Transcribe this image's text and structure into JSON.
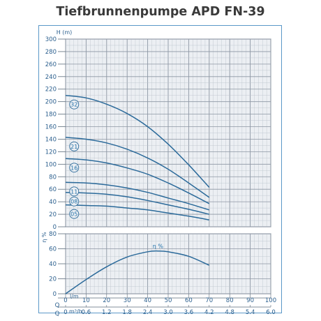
{
  "title": "Tiefbrunnenpumpe APD FN-39",
  "chart_data": [
    {
      "type": "line",
      "title": "Tiefbrunnenpumpe APD FN-39",
      "ylabel": "H (m)",
      "xlabel": "",
      "xlim": [
        0,
        100
      ],
      "ylim": [
        0,
        300
      ],
      "y_ticks": [
        0,
        20,
        40,
        60,
        80,
        100,
        120,
        140,
        160,
        180,
        200,
        220,
        240,
        260,
        280,
        300
      ],
      "grid": true,
      "series": [
        {
          "name": "32",
          "x": [
            0,
            10,
            20,
            30,
            40,
            50,
            60,
            70
          ],
          "y": [
            210,
            206,
            196,
            181,
            160,
            132,
            99,
            63
          ]
        },
        {
          "name": "21",
          "x": [
            0,
            10,
            20,
            30,
            40,
            50,
            60,
            70
          ],
          "y": [
            143,
            140,
            134,
            124,
            110,
            92,
            70,
            47
          ]
        },
        {
          "name": "16",
          "x": [
            0,
            10,
            20,
            30,
            40,
            50,
            60,
            70
          ],
          "y": [
            109,
            107,
            102,
            94,
            84,
            70,
            54,
            37
          ]
        },
        {
          "name": "11",
          "x": [
            0,
            10,
            20,
            30,
            40,
            50,
            60,
            70
          ],
          "y": [
            71,
            70,
            67,
            62,
            55,
            46,
            37,
            27
          ]
        },
        {
          "name": "08",
          "x": [
            0,
            10,
            20,
            30,
            40,
            50,
            60,
            70
          ],
          "y": [
            55,
            54,
            52,
            48,
            42,
            35,
            28,
            20
          ]
        },
        {
          "name": "05",
          "x": [
            0,
            10,
            20,
            30,
            40,
            50,
            60,
            70
          ],
          "y": [
            35,
            34,
            33,
            30,
            27,
            22,
            17,
            11
          ]
        }
      ]
    },
    {
      "type": "line",
      "ylabel": "η %",
      "xlabel": "l/m",
      "xlim": [
        0,
        100
      ],
      "ylim": [
        0,
        80
      ],
      "y_ticks": [
        0,
        20,
        40,
        60,
        80
      ],
      "grid": true,
      "series": [
        {
          "name": "η %",
          "x": [
            0,
            10,
            20,
            30,
            40,
            45,
            50,
            60,
            70
          ],
          "y": [
            0,
            19,
            36,
            49,
            56,
            57,
            56,
            50,
            38
          ]
        }
      ]
    }
  ],
  "x_axis": {
    "lpm_label": "l/m",
    "lpm_ticks": [
      "0",
      "10",
      "20",
      "30",
      "40",
      "50",
      "60",
      "70",
      "80",
      "90",
      "100"
    ],
    "m3h_label": "m³/h",
    "m3h_ticks": [
      "0",
      "0.6",
      "1.2",
      "1.8",
      "2.4",
      "3.0",
      "3.6",
      "4.2",
      "4.8",
      "5.4",
      "6.0"
    ],
    "q_label": "Q"
  }
}
